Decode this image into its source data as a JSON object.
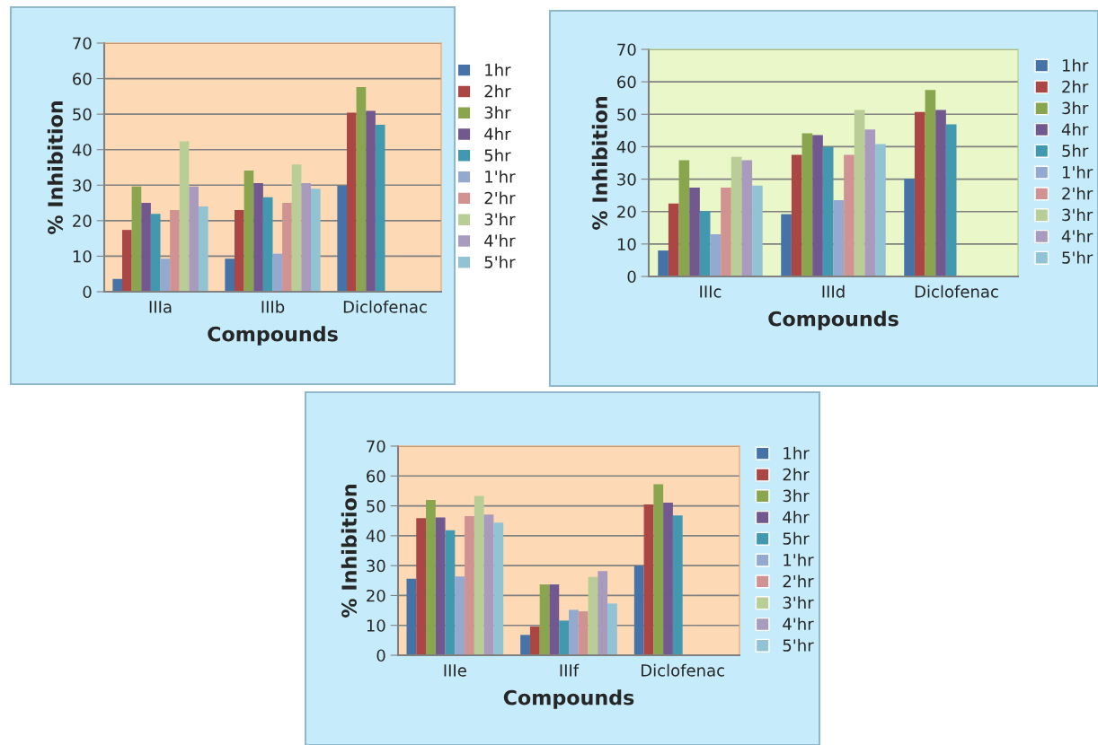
{
  "chart_data": [
    {
      "type": "bar",
      "xlabel": "Compounds",
      "ylabel": "% Inhibition",
      "categories": [
        "IIIa",
        "IIIb",
        "Diclofenac"
      ],
      "ylim": [
        0,
        70
      ],
      "yticks": [
        0,
        10,
        20,
        30,
        40,
        50,
        60,
        70
      ],
      "grid": "y",
      "legend": "right",
      "series": [
        {
          "name": "1hr",
          "color": "#4572a7",
          "values": [
            3.6,
            9.3,
            29.8
          ]
        },
        {
          "name": "2hr",
          "color": "#aa4643",
          "values": [
            17.4,
            23.0,
            50.4
          ]
        },
        {
          "name": "3hr",
          "color": "#89a54e",
          "values": [
            29.6,
            34.1,
            57.6
          ]
        },
        {
          "name": "4hr",
          "color": "#71588f",
          "values": [
            25.0,
            30.6,
            50.9
          ]
        },
        {
          "name": "5hr",
          "color": "#4198af",
          "values": [
            21.9,
            26.6,
            47.0
          ]
        },
        {
          "name": "1'hr",
          "color": "#93a9cf",
          "values": [
            9.3,
            10.7,
            null
          ]
        },
        {
          "name": "2'hr",
          "color": "#d19392",
          "values": [
            23.0,
            25.0,
            null
          ]
        },
        {
          "name": "3'hr",
          "color": "#b9cd96",
          "values": [
            42.3,
            35.8,
            null
          ]
        },
        {
          "name": "4'hr",
          "color": "#a99bbd",
          "values": [
            29.6,
            30.6,
            null
          ]
        },
        {
          "name": "5'hr",
          "color": "#92c3d4",
          "values": [
            24.0,
            29.0,
            null
          ]
        }
      ]
    },
    {
      "type": "bar",
      "xlabel": "Compounds",
      "ylabel": "% Inhibition",
      "categories": [
        "IIIc",
        "IIId",
        "Diclofenac"
      ],
      "ylim": [
        0,
        70
      ],
      "yticks": [
        0,
        10,
        20,
        30,
        40,
        50,
        60,
        70
      ],
      "grid": "y",
      "legend": "right",
      "series": [
        {
          "name": "1hr",
          "color": "#4572a7",
          "values": [
            8.0,
            19.2,
            30.1
          ]
        },
        {
          "name": "2hr",
          "color": "#aa4643",
          "values": [
            22.5,
            37.5,
            50.7
          ]
        },
        {
          "name": "3hr",
          "color": "#89a54e",
          "values": [
            35.8,
            44.1,
            57.5
          ]
        },
        {
          "name": "4hr",
          "color": "#71588f",
          "values": [
            27.4,
            43.6,
            51.3
          ]
        },
        {
          "name": "5hr",
          "color": "#4198af",
          "values": [
            20.1,
            39.9,
            46.9
          ]
        },
        {
          "name": "1'hr",
          "color": "#93a9cf",
          "values": [
            13.0,
            23.5,
            null
          ]
        },
        {
          "name": "2'hr",
          "color": "#d19392",
          "values": [
            27.4,
            37.5,
            null
          ]
        },
        {
          "name": "3'hr",
          "color": "#b9cd96",
          "values": [
            36.9,
            51.3,
            null
          ]
        },
        {
          "name": "4'hr",
          "color": "#a99bbd",
          "values": [
            35.8,
            45.3,
            null
          ]
        },
        {
          "name": "5'hr",
          "color": "#92c3d4",
          "values": [
            28.0,
            40.8,
            null
          ]
        }
      ]
    },
    {
      "type": "bar",
      "xlabel": "Compounds",
      "ylabel": "% Inhibition",
      "categories": [
        "IIIe",
        "IIIf",
        "Diclofenac"
      ],
      "ylim": [
        0,
        70
      ],
      "yticks": [
        0,
        10,
        20,
        30,
        40,
        50,
        60,
        70
      ],
      "grid": "y",
      "legend": "right",
      "series": [
        {
          "name": "1hr",
          "color": "#4572a7",
          "values": [
            25.6,
            6.8,
            30.0
          ]
        },
        {
          "name": "2hr",
          "color": "#aa4643",
          "values": [
            45.9,
            9.6,
            50.5
          ]
        },
        {
          "name": "3hr",
          "color": "#89a54e",
          "values": [
            52.0,
            23.7,
            57.2
          ]
        },
        {
          "name": "4hr",
          "color": "#71588f",
          "values": [
            46.1,
            23.7,
            51.1
          ]
        },
        {
          "name": "5hr",
          "color": "#4198af",
          "values": [
            41.8,
            11.6,
            46.8
          ]
        },
        {
          "name": "1'hr",
          "color": "#93a9cf",
          "values": [
            26.4,
            15.2,
            null
          ]
        },
        {
          "name": "2'hr",
          "color": "#d19392",
          "values": [
            46.6,
            14.7,
            null
          ]
        },
        {
          "name": "3'hr",
          "color": "#b9cd96",
          "values": [
            53.3,
            26.2,
            null
          ]
        },
        {
          "name": "4'hr",
          "color": "#a99bbd",
          "values": [
            47.1,
            28.2,
            null
          ]
        },
        {
          "name": "5'hr",
          "color": "#92c3d4",
          "values": [
            44.4,
            17.3,
            null
          ]
        }
      ]
    }
  ]
}
